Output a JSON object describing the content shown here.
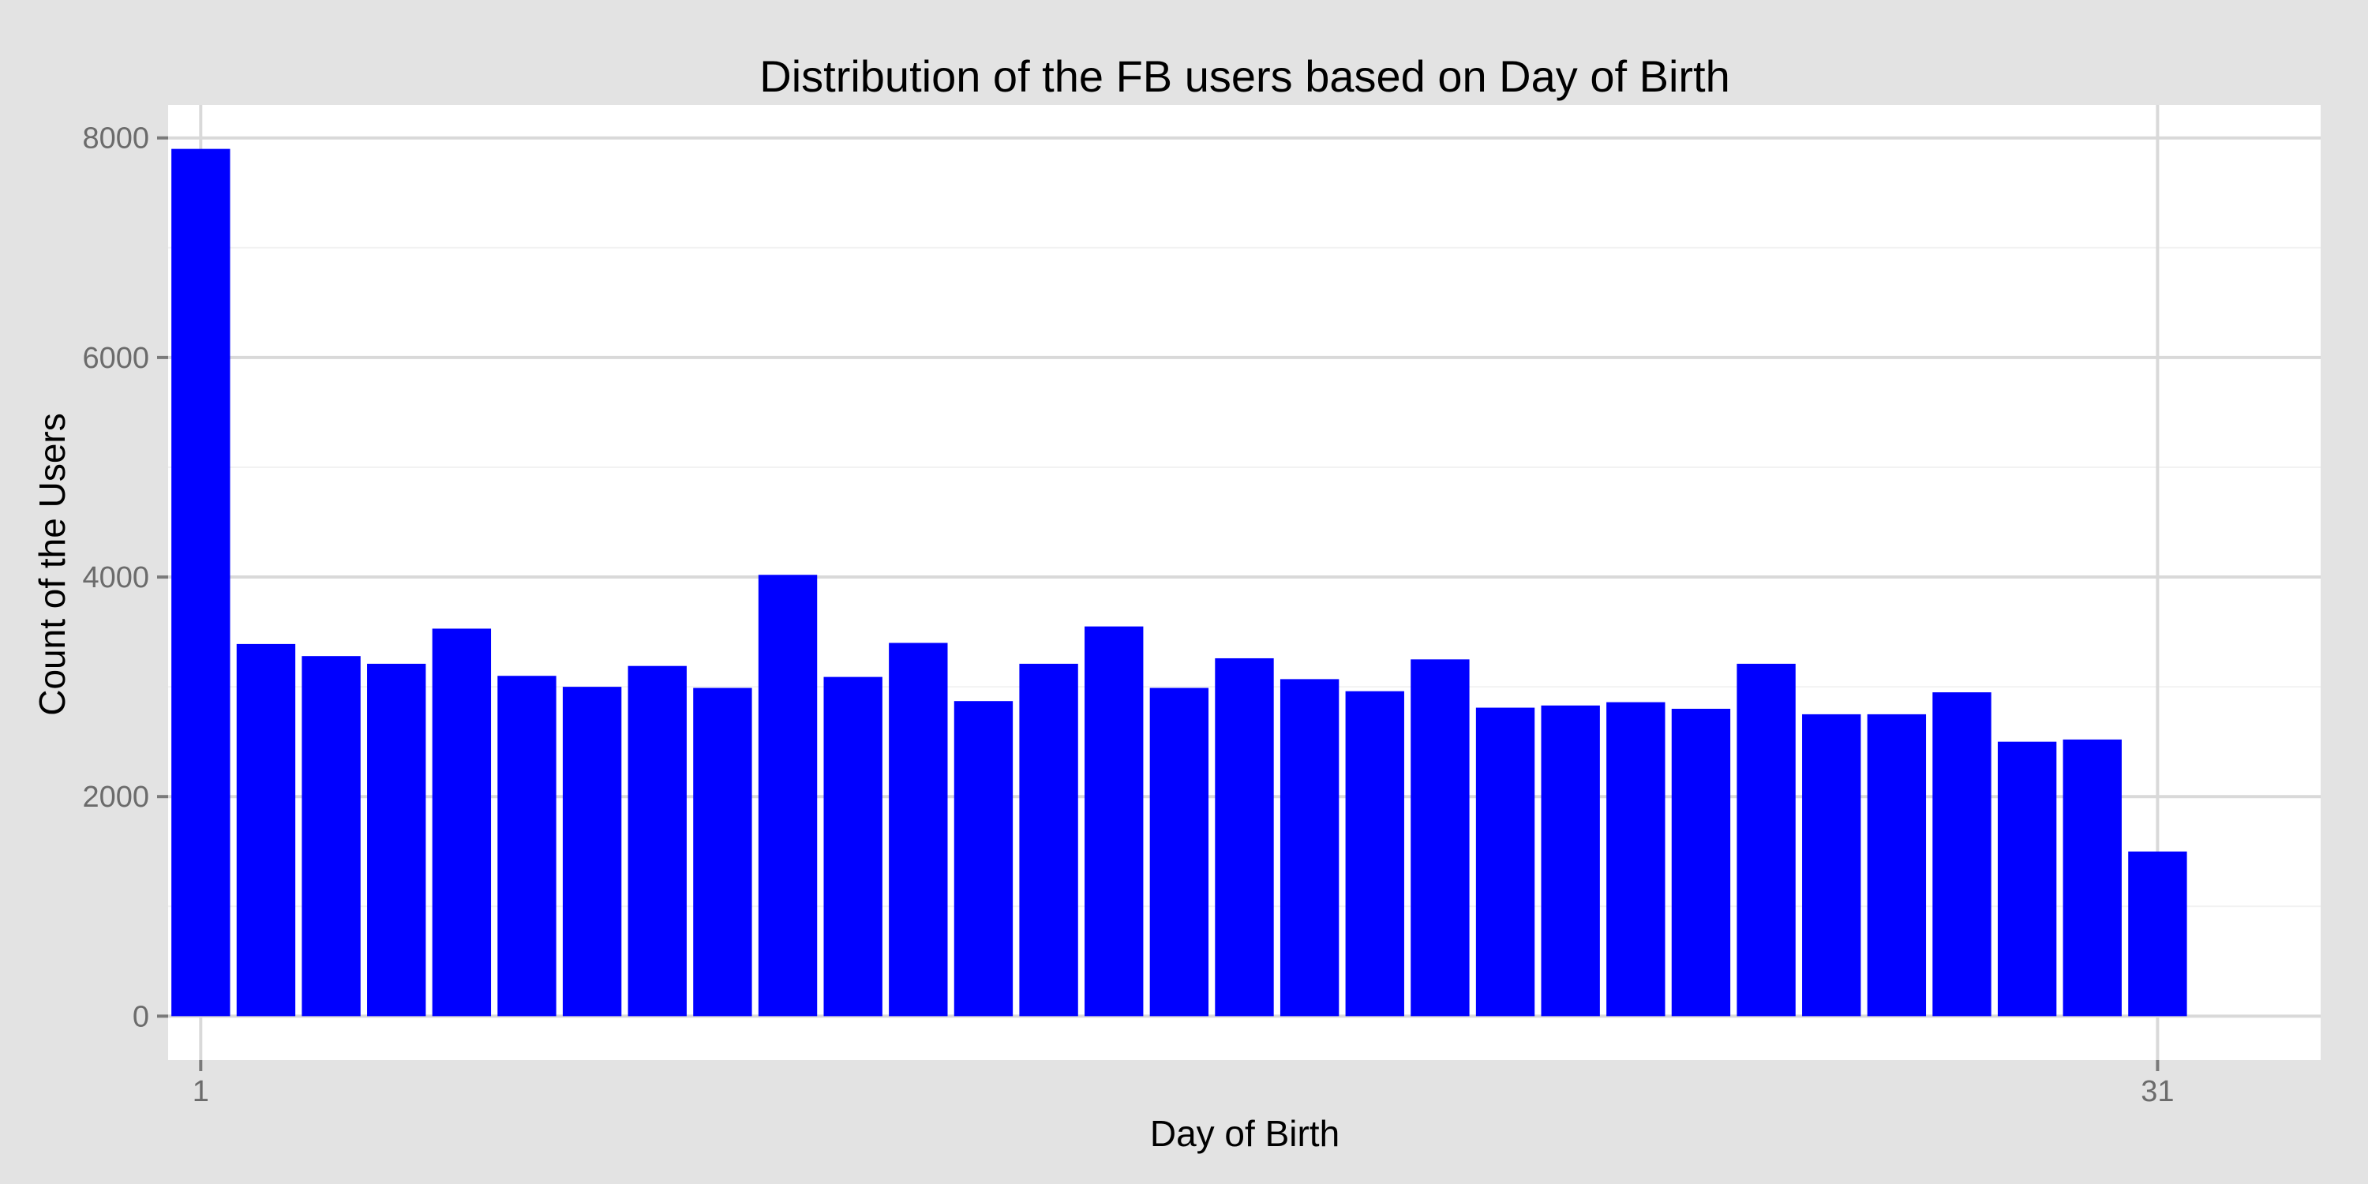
{
  "chart_data": {
    "type": "bar",
    "title": "Distribution of the FB users based on Day of Birth",
    "xlabel": "Day of Birth",
    "ylabel": "Count of the Users",
    "categories": [
      1,
      2,
      3,
      4,
      5,
      6,
      7,
      8,
      9,
      10,
      11,
      12,
      13,
      14,
      15,
      16,
      17,
      18,
      19,
      20,
      21,
      22,
      23,
      24,
      25,
      26,
      27,
      28,
      29,
      30,
      31
    ],
    "values": [
      7900,
      3390,
      3280,
      3210,
      3530,
      3100,
      3000,
      3190,
      2990,
      4020,
      3090,
      3400,
      2870,
      3210,
      3550,
      2990,
      3260,
      3070,
      2960,
      3250,
      2810,
      2830,
      2860,
      2800,
      3210,
      2750,
      2750,
      2950,
      2500,
      2520,
      1500
    ],
    "xlim": [
      0.5,
      33.5
    ],
    "ylim": [
      -400,
      8300
    ],
    "x_ticks": [
      1,
      31
    ],
    "x_tick_labels": [
      "1",
      "31"
    ],
    "y_ticks": [
      0,
      2000,
      4000,
      6000,
      8000
    ],
    "y_tick_labels": [
      "0",
      "2000",
      "4000",
      "6000",
      "8000"
    ],
    "bar_color": "#0000ff",
    "panel_background": "#ffffff",
    "plot_background": "#e3e3e3",
    "grid": true,
    "legend": "none"
  }
}
